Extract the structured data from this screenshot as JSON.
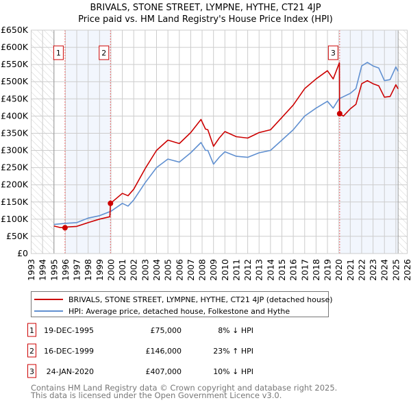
{
  "chart_data": {
    "type": "line",
    "title": "BRIVALS, STONE STREET, LYMPNE, HYTHE, CT21 4JP",
    "subtitle": "Price paid vs. HM Land Registry's House Price Index (HPI)",
    "xlim": [
      1993,
      2026
    ],
    "ylim": [
      0,
      650000
    ],
    "x_ticks": [
      1993,
      1994,
      1995,
      1996,
      1997,
      1998,
      1999,
      2000,
      2001,
      2002,
      2003,
      2004,
      2005,
      2006,
      2007,
      2008,
      2009,
      2010,
      2011,
      2012,
      2013,
      2014,
      2015,
      2016,
      2017,
      2018,
      2019,
      2020,
      2021,
      2022,
      2023,
      2024,
      2025,
      2026
    ],
    "y_ticks": [
      0,
      50000,
      100000,
      150000,
      200000,
      250000,
      300000,
      350000,
      400000,
      450000,
      500000,
      550000,
      600000,
      650000
    ],
    "y_tick_labels": [
      "£0",
      "£50K",
      "£100K",
      "£150K",
      "£200K",
      "£250K",
      "£300K",
      "£350K",
      "£400K",
      "£450K",
      "£500K",
      "£550K",
      "£600K",
      "£650K"
    ],
    "grid": true,
    "data_range": [
      1995.0,
      2025.2
    ],
    "shaded_periods": [
      [
        1995.97,
        1999.96
      ],
      [
        2020.07,
        2025.2
      ]
    ],
    "series": [
      {
        "name": "BRIVALS, STONE STREET, LYMPNE, HYTHE, CT21 4JP (detached house)",
        "color": "#cc0000",
        "x": [
          1995.0,
          1995.5,
          1995.97,
          1996,
          1997,
          1998,
          1999,
          1999.9,
          1999.96,
          2001,
          2001.5,
          2002,
          2003,
          2004,
          2005,
          2006,
          2007,
          2007.9,
          2008.3,
          2008.5,
          2009,
          2009.5,
          2010,
          2011,
          2012,
          2013,
          2014,
          2015,
          2016,
          2017,
          2018,
          2019,
          2019.5,
          2020.05,
          2020.07,
          2020.4,
          2021,
          2021.5,
          2022,
          2022.5,
          2023,
          2023.5,
          2024,
          2024.5,
          2025,
          2025.2
        ],
        "values": [
          80000,
          76000,
          75000,
          77000,
          79000,
          90000,
          100000,
          107000,
          146000,
          175000,
          168000,
          187000,
          247000,
          300000,
          330000,
          320000,
          352000,
          390000,
          362000,
          360000,
          312000,
          336000,
          355000,
          340000,
          336000,
          352000,
          360000,
          396000,
          432000,
          480000,
          508000,
          532000,
          508000,
          555000,
          407000,
          400000,
          421000,
          434000,
          494000,
          503000,
          494000,
          488000,
          455000,
          457000,
          491000,
          479000
        ]
      },
      {
        "name": "HPI: Average price, detached house, Folkestone and Hythe",
        "color": "#5f8fd0",
        "x": [
          1995.0,
          1996,
          1997,
          1998,
          1999,
          2000,
          2001,
          2001.5,
          2002,
          2003,
          2004,
          2005,
          2006,
          2007,
          2007.9,
          2008.3,
          2008.5,
          2009,
          2009.5,
          2010,
          2011,
          2012,
          2013,
          2014,
          2015,
          2016,
          2017,
          2018,
          2019,
          2019.5,
          2020,
          2021,
          2021.5,
          2022,
          2022.5,
          2023,
          2023.5,
          2024,
          2024.5,
          2025,
          2025.2
        ],
        "values": [
          84600,
          88000,
          90000,
          103000,
          110000,
          123000,
          146000,
          138000,
          156000,
          206000,
          250000,
          275000,
          266000,
          293000,
          323000,
          300000,
          300000,
          260000,
          280000,
          296000,
          283000,
          280000,
          293000,
          300000,
          330000,
          360000,
          400000,
          423000,
          443000,
          423000,
          450000,
          466000,
          480000,
          546000,
          556000,
          546000,
          540000,
          503000,
          506000,
          543000,
          530000
        ]
      }
    ],
    "sales": [
      {
        "num": "1",
        "year": 1995.97,
        "price": 75000,
        "date": "19-DEC-1995",
        "price_label": "£75,000",
        "hpi": "8% ↓ HPI"
      },
      {
        "num": "2",
        "year": 1999.96,
        "price": 146000,
        "date": "16-DEC-1999",
        "price_label": "£146,000",
        "hpi": "23% ↑ HPI"
      },
      {
        "num": "3",
        "year": 2020.07,
        "price": 407000,
        "date": "24-JAN-2020",
        "price_label": "£407,000",
        "hpi": "10% ↓ HPI"
      }
    ]
  },
  "footer": {
    "line1": "Contains HM Land Registry data © Crown copyright and database right 2025.",
    "line2": "This data is licensed under the Open Government Licence v3.0."
  }
}
